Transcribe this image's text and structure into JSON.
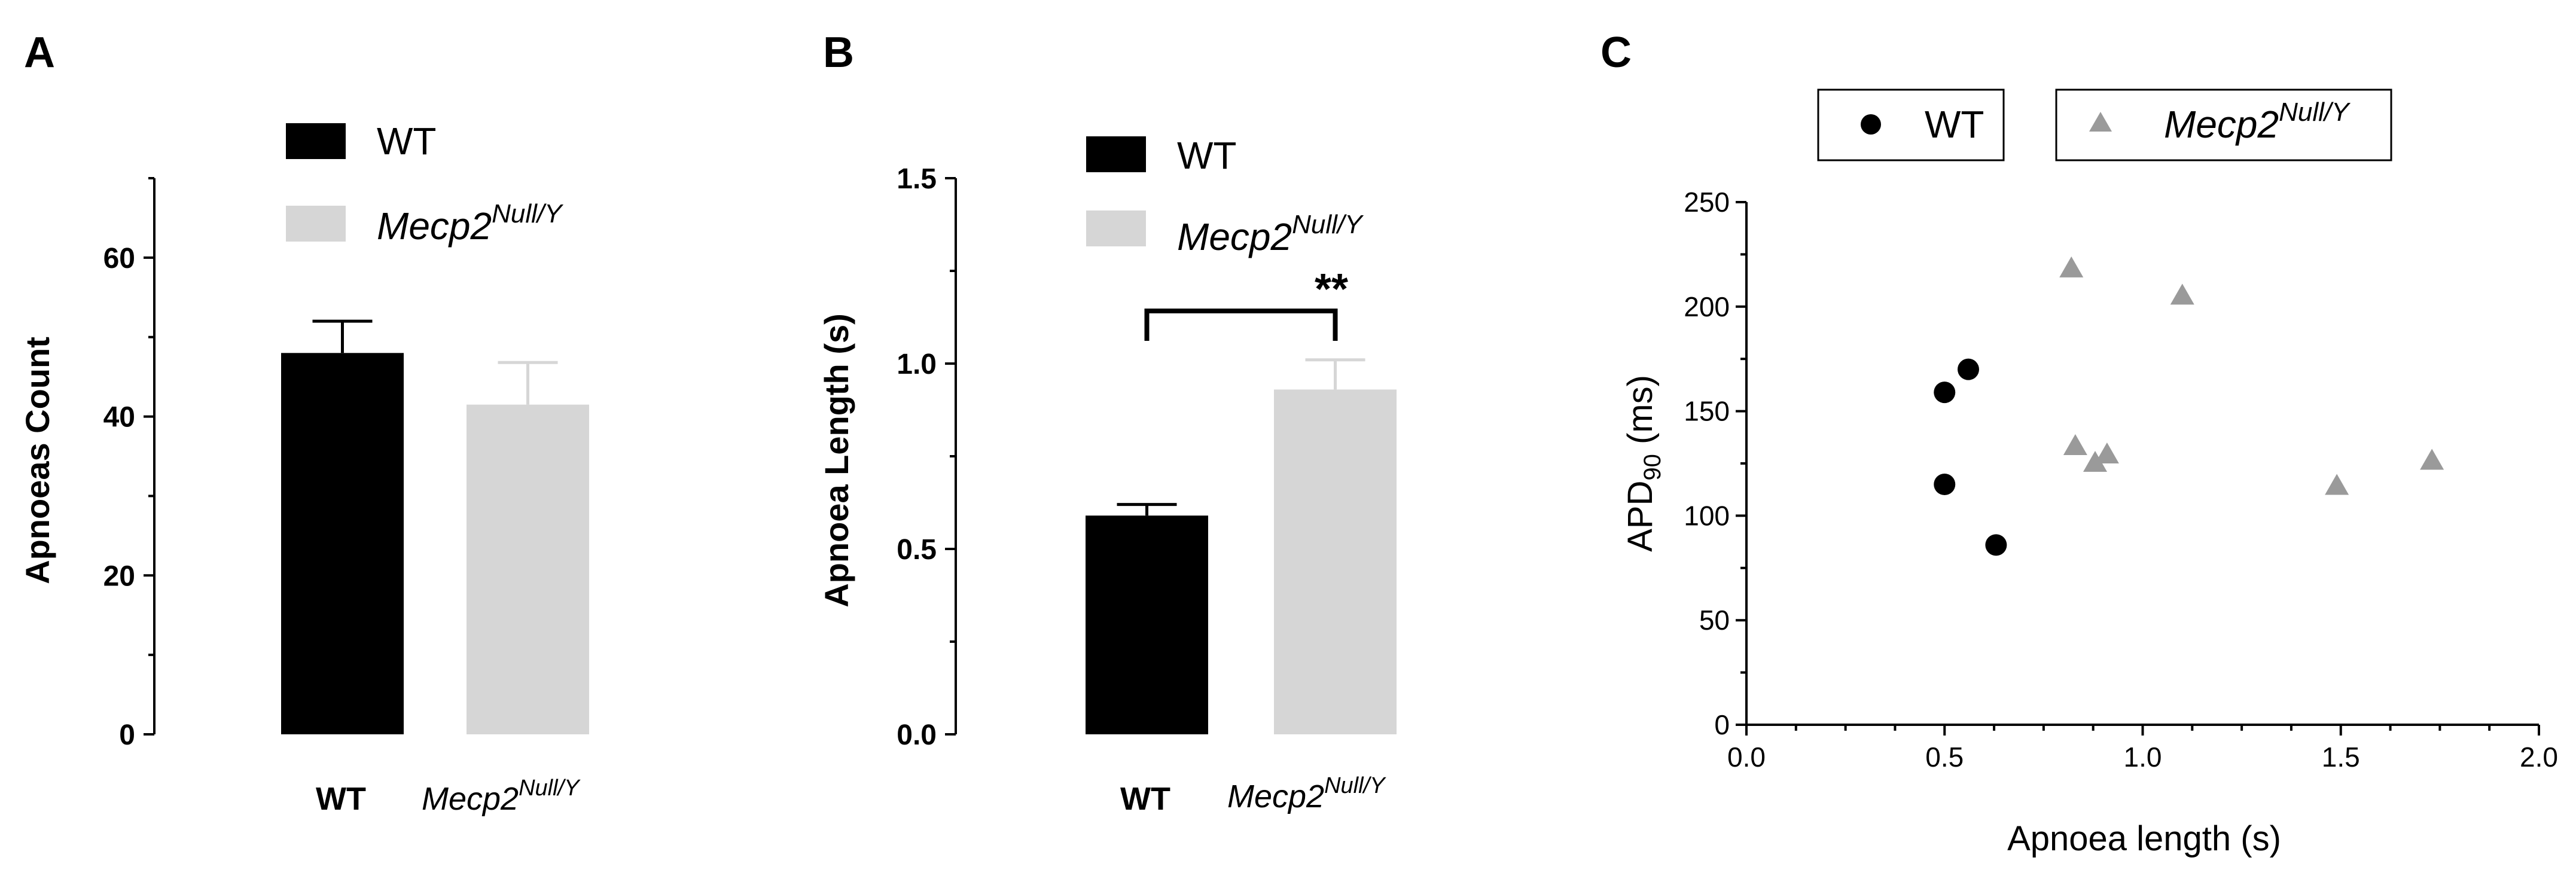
{
  "chart_data": [
    {
      "panel": "A",
      "type": "bar",
      "categories": [
        "WT",
        "Mecp2"
      ],
      "category_superscripts": [
        "",
        "Null/Y"
      ],
      "values": [
        48,
        41.5
      ],
      "errors": [
        4,
        5.3
      ],
      "colors": [
        "#000000",
        "#d6d6d6"
      ],
      "ylabel": "Apnoeas Count",
      "ylim": [
        0,
        70
      ],
      "yticks": [
        0,
        20,
        40,
        60
      ],
      "ytick_labels": [
        "0",
        "20",
        "40",
        "60"
      ],
      "legend": [
        {
          "label": "WT",
          "superscript": "",
          "color": "#000000"
        },
        {
          "label": "Mecp2",
          "superscript": "Null/Y",
          "color": "#d6d6d6"
        }
      ]
    },
    {
      "panel": "B",
      "type": "bar",
      "categories": [
        "WT",
        "Mecp2"
      ],
      "category_superscripts": [
        "",
        "Null/Y"
      ],
      "values": [
        0.59,
        0.93
      ],
      "errors": [
        0.03,
        0.08
      ],
      "colors": [
        "#000000",
        "#d6d6d6"
      ],
      "ylabel": "Apnoea Length (s)",
      "ylim": [
        0,
        1.5
      ],
      "yticks": [
        0,
        0.5,
        1.0,
        1.5
      ],
      "ytick_labels": [
        "0.0",
        "0.5",
        "1.0",
        "1.5"
      ],
      "significance": {
        "label": "**",
        "between": [
          "WT",
          "Mecp2"
        ]
      },
      "legend": [
        {
          "label": "WT",
          "superscript": "",
          "color": "#000000"
        },
        {
          "label": "Mecp2",
          "superscript": "Null/Y",
          "color": "#d6d6d6"
        }
      ]
    },
    {
      "panel": "C",
      "type": "scatter",
      "xlabel": "Apnoea length (s)",
      "ylabel": "APD",
      "ylabel_subscript": "90",
      "ylabel_unit": "(ms)",
      "xlim": [
        0,
        2
      ],
      "ylim": [
        0,
        250
      ],
      "xticks": [
        0,
        0.5,
        1.0,
        1.5,
        2.0
      ],
      "xtick_labels": [
        "0.0",
        "0.5",
        "1.0",
        "1.5",
        "2.0"
      ],
      "yticks": [
        0,
        50,
        100,
        150,
        200,
        250
      ],
      "ytick_labels": [
        "0",
        "50",
        "100",
        "150",
        "200",
        "250"
      ],
      "series": [
        {
          "name": "WT",
          "superscript": "",
          "marker": "circle",
          "color": "#000000",
          "points": [
            [
              0.5,
              159
            ],
            [
              0.56,
              170
            ],
            [
              0.5,
              115
            ],
            [
              0.63,
              86
            ]
          ]
        },
        {
          "name": "Mecp2",
          "superscript": "Null/Y",
          "marker": "triangle",
          "color": "#9a9a9a",
          "points": [
            [
              0.82,
              218
            ],
            [
              1.1,
              205
            ],
            [
              0.83,
              133
            ],
            [
              0.88,
              125
            ],
            [
              0.91,
              129
            ],
            [
              1.49,
              114
            ],
            [
              1.73,
              126
            ]
          ]
        }
      ]
    }
  ]
}
